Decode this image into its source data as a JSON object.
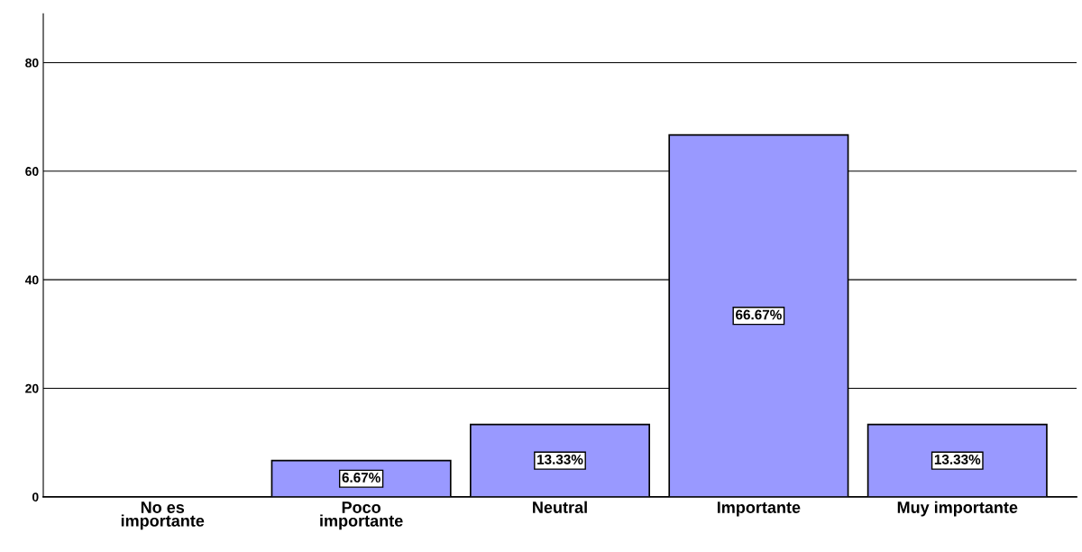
{
  "chart_data": {
    "type": "bar",
    "categories": [
      "No es\nimportante",
      "Poco\nimportante",
      "Neutral",
      "Importante",
      "Muy importante"
    ],
    "values": [
      0,
      6.67,
      13.33,
      66.67,
      13.33
    ],
    "value_labels": [
      null,
      "6.67%",
      "13.33%",
      "66.67%",
      "13.33%"
    ],
    "color": "#9999ff",
    "ylim": [
      0,
      89
    ],
    "yticks": [
      0,
      20,
      40,
      60,
      80
    ],
    "grid": "y"
  }
}
